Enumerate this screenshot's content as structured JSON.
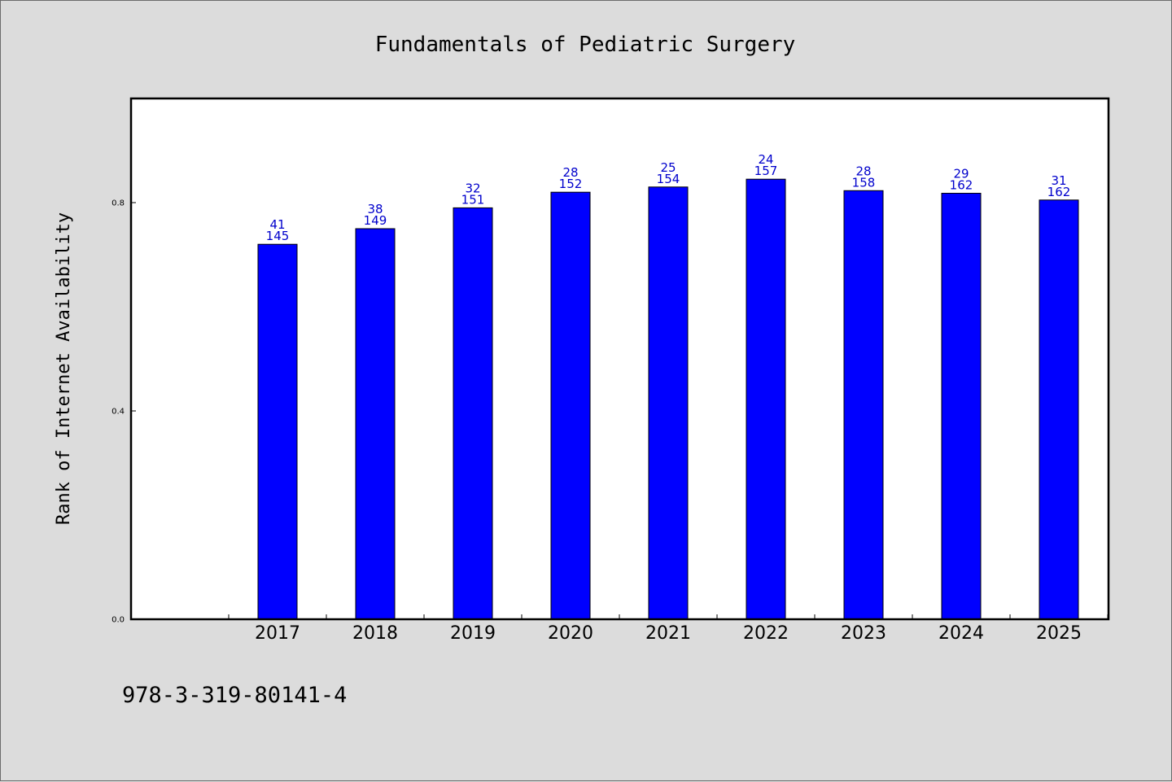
{
  "chart_data": {
    "type": "bar",
    "title": "Fundamentals of Pediatric Surgery",
    "xlabel": "",
    "ylabel": "Rank of Internet Availability",
    "categories": [
      "2017",
      "2018",
      "2019",
      "2020",
      "2021",
      "2022",
      "2023",
      "2024",
      "2025"
    ],
    "values": [
      0.72,
      0.75,
      0.79,
      0.82,
      0.83,
      0.845,
      0.823,
      0.818,
      0.805
    ],
    "labels_top": [
      "41",
      "38",
      "32",
      "28",
      "25",
      "24",
      "28",
      "29",
      "31"
    ],
    "labels_bottom": [
      "145",
      "149",
      "151",
      "152",
      "154",
      "157",
      "158",
      "162",
      "162"
    ],
    "yticks": [
      "0.0",
      "0.4",
      "0.8"
    ],
    "ylim": [
      0,
      1.0
    ],
    "grid": false,
    "bar_color": "#0000ff",
    "label_color": "#0000cc"
  },
  "footer": {
    "isbn": "978-3-319-80141-4"
  }
}
